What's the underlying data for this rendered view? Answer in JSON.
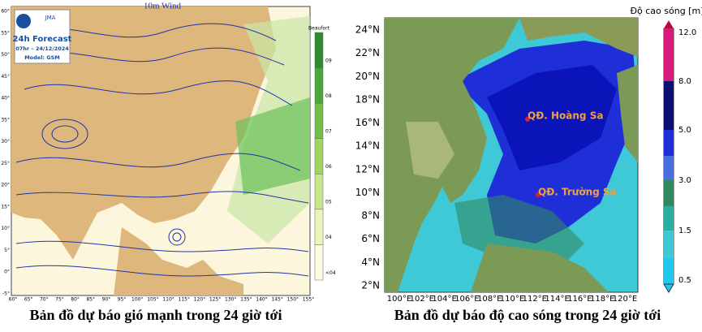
{
  "left_map": {
    "title": "10m Wind",
    "logo": "JMA",
    "forecast": "24h Forecast",
    "time": "07hr – 24/12/2024",
    "model": "Model: GSM",
    "colorbar_title": "Beaufort",
    "colorbar_labels": [
      "09",
      "08",
      "07",
      "06",
      "05",
      "04",
      "<04"
    ],
    "lat_labels": [
      "60°",
      "55°",
      "50°",
      "45°",
      "40°",
      "35°",
      "30°",
      "25°",
      "20°",
      "15°",
      "10°",
      "5°",
      "0°",
      "-5°"
    ],
    "lon_labels": [
      "60°",
      "65°",
      "70°",
      "75°",
      "80°",
      "85°",
      "90°",
      "95°",
      "100°",
      "105°",
      "110°",
      "115°",
      "120°",
      "125°",
      "130°",
      "135°",
      "140°",
      "145°",
      "150°",
      "155°"
    ],
    "caption": "Bản đồ dự báo gió mạnh trong 24 giờ tới"
  },
  "right_map": {
    "colorbar_title": "Độ cao sóng [m]",
    "colorbar_labels": [
      "12.0",
      "8.0",
      "5.0",
      "3.0",
      "1.5",
      "0.5"
    ],
    "lat_labels": [
      "24°N",
      "22°N",
      "20°N",
      "18°N",
      "16°N",
      "14°N",
      "12°N",
      "10°N",
      "8°N",
      "6°N",
      "4°N",
      "2°N"
    ],
    "lon_labels": [
      "100°E",
      "102°E",
      "104°E",
      "106°E",
      "108°E",
      "110°E",
      "112°E",
      "114°E",
      "116°E",
      "118°E",
      "120°E"
    ],
    "places": [
      "QĐ. Hoàng Sa",
      "QĐ. Trường Sa"
    ],
    "caption": "Bản đồ dự báo độ cao sóng trong 24 giờ tới"
  }
}
